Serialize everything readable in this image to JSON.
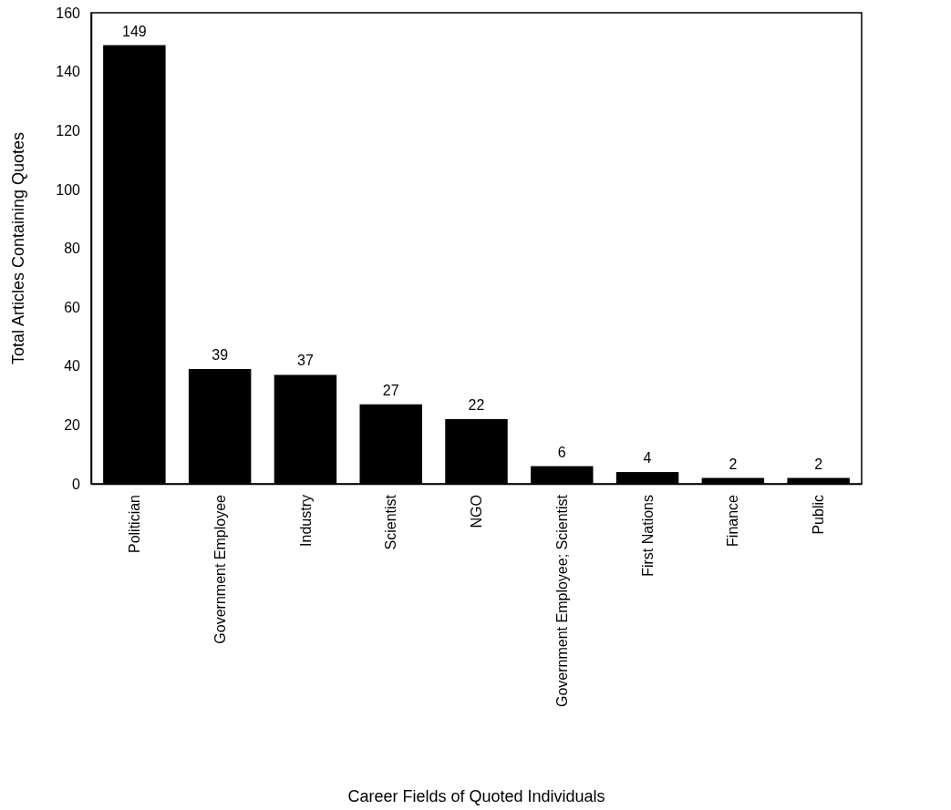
{
  "chart_data": {
    "type": "bar",
    "xlabel": "Career Fields of Quoted Individuals",
    "ylabel": "Total Articles Containing Quotes",
    "categories": [
      "Politician",
      "Government Employee",
      "Industry",
      "Scientist",
      "NGO",
      "Government Employee; Scientist",
      "First Nations",
      "Finance",
      "Public"
    ],
    "values": [
      149,
      39,
      37,
      27,
      22,
      6,
      4,
      2,
      2
    ],
    "color": "#000000",
    "ylim": [
      0,
      160
    ],
    "yticks": [
      0,
      20,
      40,
      60,
      80,
      100,
      120,
      140,
      160
    ],
    "grid": false,
    "data_labels": true
  }
}
